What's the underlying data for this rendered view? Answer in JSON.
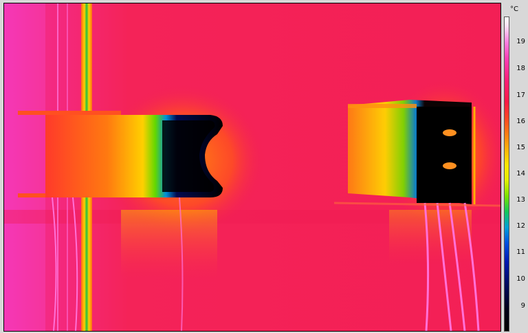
{
  "scale": {
    "unit": "°C",
    "ticks": [
      "19",
      "18",
      "17",
      "16",
      "15",
      "14",
      "13",
      "12",
      "11",
      "10",
      "9"
    ]
  }
}
